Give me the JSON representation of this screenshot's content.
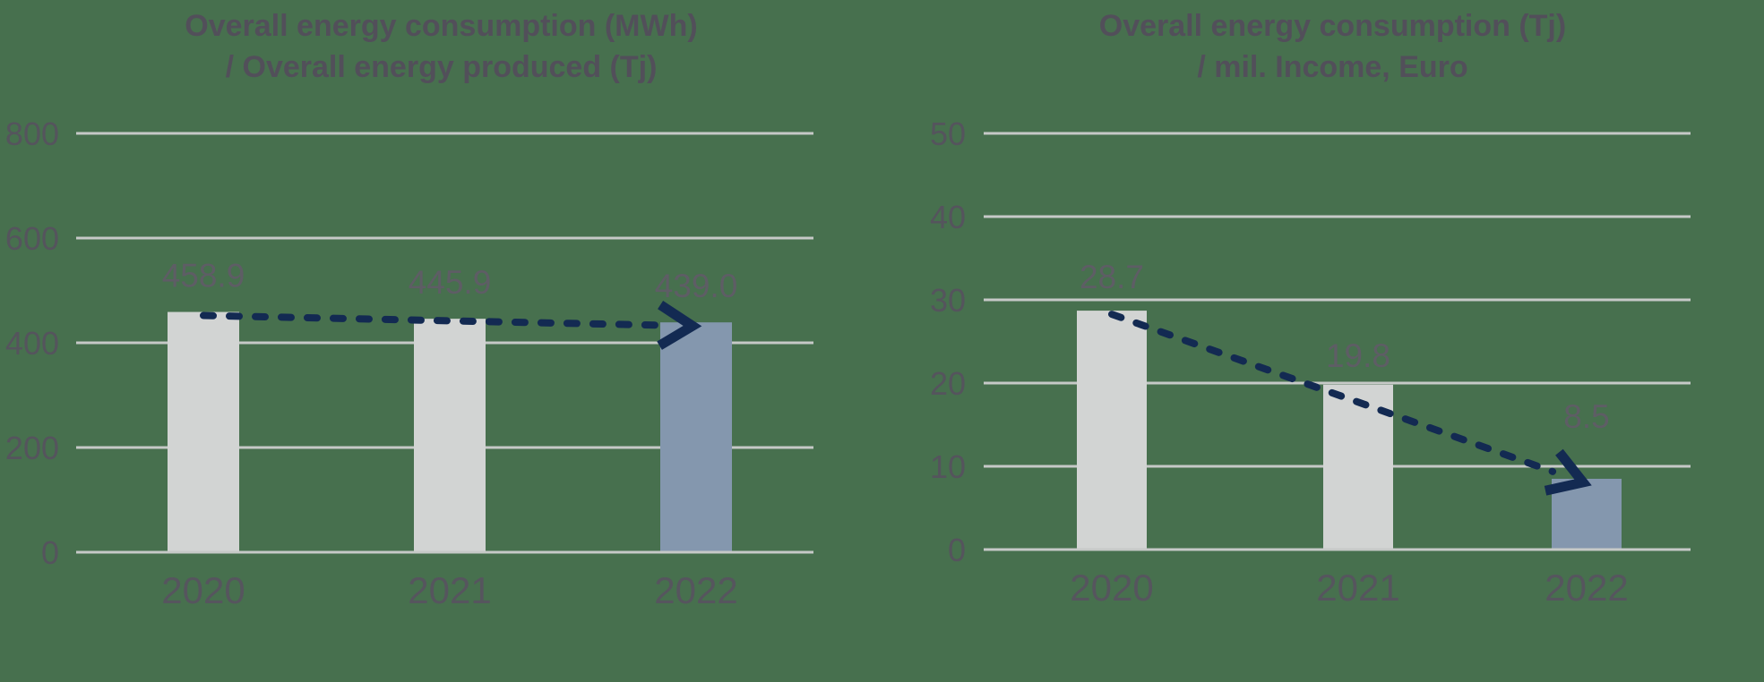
{
  "page": {
    "background_color": "#47704E"
  },
  "colors": {
    "bar_default": "#D2D4D3",
    "bar_highlight": "#8497AE",
    "gridline": "#C6C9C7",
    "title_text": "#524F5A",
    "tick_text": "#55545D",
    "data_label_text": "#5E5D65",
    "category_text": "#56555E",
    "trend_arrow": "#132A52"
  },
  "chart_data": [
    {
      "type": "bar",
      "title": "Overall energy consumption (MWh) / Overall energy produced (Tj)",
      "title_lines": [
        "Overall energy consumption (MWh)",
        "/ Overall energy produced (Tj)"
      ],
      "categories": [
        "2020",
        "2021",
        "2022"
      ],
      "values": [
        458.9,
        445.9,
        439.0
      ],
      "data_labels": [
        "458.9",
        "445.9",
        "439.0"
      ],
      "yticks": [
        800,
        600,
        400,
        200,
        0
      ],
      "ylim": [
        0,
        800
      ],
      "xlabel": "",
      "ylabel": "",
      "grid": true,
      "legend": "none",
      "bar_colors": [
        "#D2D4D3",
        "#D2D4D3",
        "#8497AE"
      ],
      "annotation": "dashed navy trend arrow from 2020 bar top to 2022 bar top"
    },
    {
      "type": "bar",
      "title": "Overall energy consumption (Tj) / mil. Income, Euro",
      "title_lines": [
        "Overall energy consumption (Tj)",
        "/ mil. Income, Euro"
      ],
      "categories": [
        "2020",
        "2021",
        "2022"
      ],
      "values": [
        28.7,
        19.8,
        8.5
      ],
      "data_labels": [
        "28.7",
        "19.8",
        "8.5"
      ],
      "yticks": [
        50,
        40,
        30,
        20,
        10,
        0
      ],
      "ylim": [
        0,
        50
      ],
      "xlabel": "",
      "ylabel": "",
      "grid": true,
      "legend": "none",
      "bar_colors": [
        "#D2D4D3",
        "#D2D4D3",
        "#8497AE"
      ],
      "annotation": "dashed navy trend arrow from 2020 bar top down to 2022 bar top"
    }
  ]
}
